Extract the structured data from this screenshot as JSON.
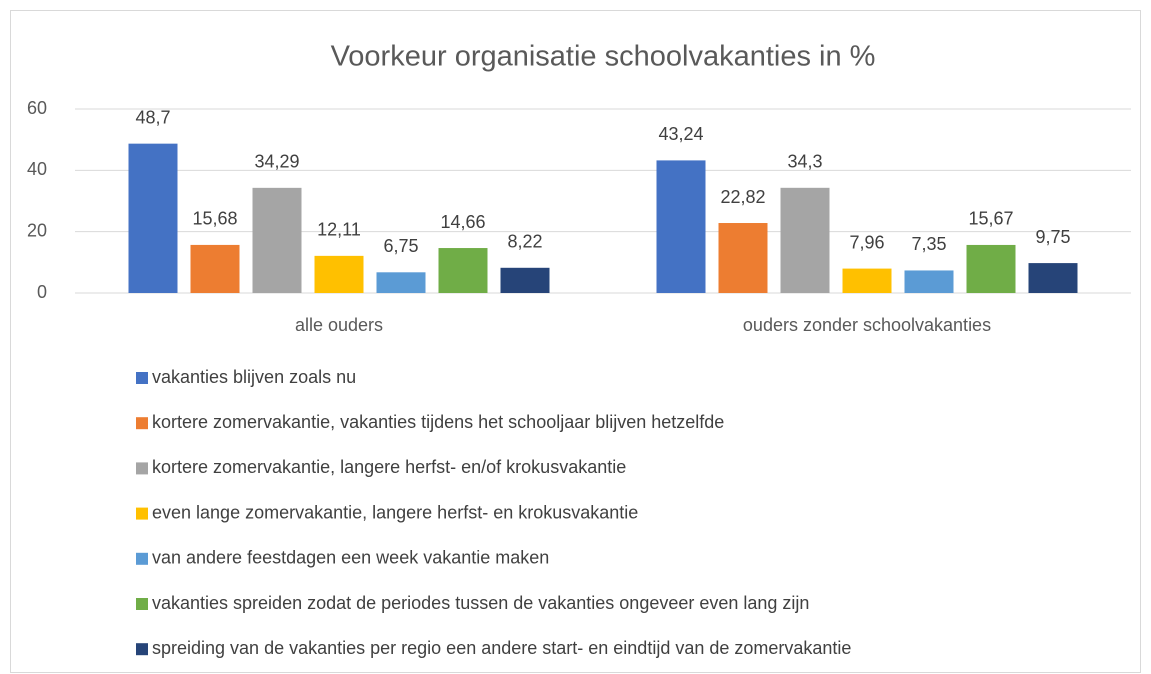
{
  "chart_data": {
    "type": "bar",
    "title": "Voorkeur organisatie schoolvakanties in %",
    "categories": [
      "alle ouders",
      "ouders zonder schoolvakanties"
    ],
    "ylim": [
      0,
      60
    ],
    "yticks": [
      0,
      20,
      40,
      60
    ],
    "grid": true,
    "legend": "bottom",
    "series": [
      {
        "name": "vakanties blijven zoals nu",
        "color": "#4472c4",
        "values": [
          48.7,
          43.24
        ],
        "value_labels": [
          "48,7",
          "43,24"
        ]
      },
      {
        "name": "kortere zomervakantie, vakanties tijdens het schooljaar blijven hetzelfde",
        "color": "#ed7d31",
        "values": [
          15.68,
          22.82
        ],
        "value_labels": [
          "15,68",
          "22,82"
        ]
      },
      {
        "name": "kortere zomervakantie, langere herfst- en/of krokusvakantie",
        "color": "#a5a5a5",
        "values": [
          34.29,
          34.3
        ],
        "value_labels": [
          "34,29",
          "34,3"
        ]
      },
      {
        "name": "even lange zomervakantie, langere herfst- en krokusvakantie",
        "color": "#ffc000",
        "values": [
          12.11,
          7.96
        ],
        "value_labels": [
          "12,11",
          "7,96"
        ]
      },
      {
        "name": "van andere feestdagen een week vakantie maken",
        "color": "#5b9bd5",
        "values": [
          6.75,
          7.35
        ],
        "value_labels": [
          "6,75",
          "7,35"
        ]
      },
      {
        "name": "vakanties spreiden zodat de periodes tussen de vakanties ongeveer even lang zijn",
        "color": "#70ad47",
        "values": [
          14.66,
          15.67
        ],
        "value_labels": [
          "14,66",
          "15,67"
        ]
      },
      {
        "name": "spreiding van de vakanties per regio een andere start- en eindtijd van de zomervakantie",
        "color": "#264478",
        "values": [
          8.22,
          9.75
        ],
        "value_labels": [
          "8,22",
          "9,75"
        ]
      }
    ]
  }
}
